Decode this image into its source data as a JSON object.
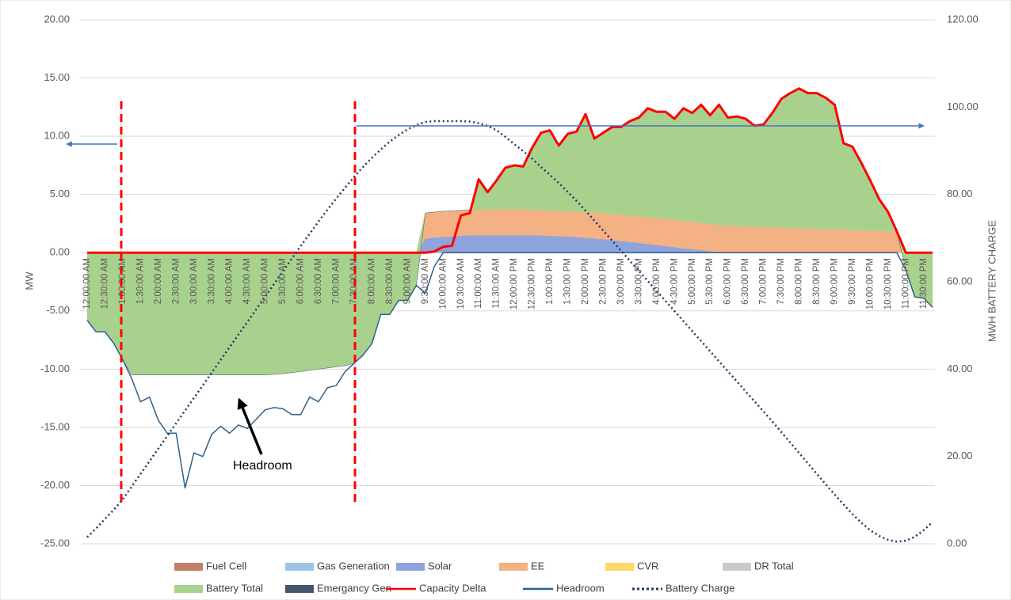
{
  "chart_data": {
    "type": "area",
    "ylabel": "MW",
    "y2label": "MWH BATTERY CHARGE",
    "ylim": [
      -25,
      20
    ],
    "yticks": [
      {
        "value": -25,
        "label": "-25.00"
      },
      {
        "value": -20,
        "label": "-20.00"
      },
      {
        "value": -15,
        "label": "-15.00"
      },
      {
        "value": -10,
        "label": "-10.00"
      },
      {
        "value": -5,
        "label": "-5.00"
      },
      {
        "value": 0,
        "label": "0.00"
      },
      {
        "value": 5,
        "label": "5.00"
      },
      {
        "value": 10,
        "label": "10.00"
      },
      {
        "value": 15,
        "label": "15.00"
      },
      {
        "value": 20,
        "label": "20.00"
      }
    ],
    "y2lim": [
      0,
      120
    ],
    "y2ticks": [
      {
        "value": 0,
        "label": "0.00"
      },
      {
        "value": 20,
        "label": "20.00"
      },
      {
        "value": 40,
        "label": "40.00"
      },
      {
        "value": 60,
        "label": "60.00"
      },
      {
        "value": 80,
        "label": "80.00"
      },
      {
        "value": 100,
        "label": "100.00"
      },
      {
        "value": 120,
        "label": "120.00"
      }
    ],
    "grid": true,
    "legend": "bottom",
    "annotations": [
      {
        "text": "Headroom"
      }
    ],
    "categories": [
      "12:00:00 AM",
      null,
      "12:30:00 AM",
      null,
      "1:00:00 AM",
      null,
      "1:30:00 AM",
      null,
      "2:00:00 AM",
      null,
      "2:30:00 AM",
      null,
      "3:00:00 AM",
      null,
      "3:30:00 AM",
      null,
      "4:00:00 AM",
      null,
      "4:30:00 AM",
      null,
      "5:00:00 AM",
      null,
      "5:30:00 AM",
      null,
      "6:00:00 AM",
      null,
      "6:30:00 AM",
      null,
      "7:00:00 AM",
      null,
      "7:30:00 AM",
      null,
      "8:00:00 AM",
      null,
      "8:30:00 AM",
      null,
      "9:00:00 AM",
      null,
      "9:30:00 AM",
      null,
      "10:00:00 AM",
      null,
      "10:30:00 AM",
      null,
      "11:00:00 AM",
      null,
      "11:30:00 AM",
      null,
      "12:00:00 PM",
      null,
      "12:30:00 PM",
      null,
      "1:00:00 PM",
      null,
      "1:30:00 PM",
      null,
      "2:00:00 PM",
      null,
      "2:30:00 PM",
      null,
      "3:00:00 PM",
      null,
      "3:30:00 PM",
      null,
      "4:00:00 PM",
      null,
      "4:30:00 PM",
      null,
      "5:00:00 PM",
      null,
      "5:30:00 PM",
      null,
      "6:00:00 PM",
      null,
      "6:30:00 PM",
      null,
      "7:00:00 PM",
      null,
      "7:30:00 PM",
      null,
      "8:00:00 PM",
      null,
      "8:30:00 PM",
      null,
      "9:00:00 PM",
      null,
      "9:30:00 PM",
      null,
      "10:00:00 PM",
      null,
      "10:30:00 PM",
      null,
      "11:00:00 PM",
      null,
      "11:30:00 PM",
      null
    ],
    "series": [
      {
        "name": "Fuel Cell",
        "type": "area",
        "color": "#c0806a",
        "values": [
          0,
          0,
          0,
          0,
          0,
          0,
          0,
          0,
          0,
          0,
          0,
          0,
          0,
          0,
          0,
          0,
          0,
          0,
          0,
          0,
          0,
          0,
          0,
          0,
          0,
          0,
          0,
          0,
          0,
          0,
          0,
          0,
          0,
          0,
          0,
          0,
          0,
          0,
          0,
          0,
          0,
          0,
          0,
          0,
          0,
          0,
          0,
          0,
          0,
          0,
          0,
          0,
          0,
          0,
          0,
          0,
          0,
          0,
          0,
          0,
          0,
          0,
          0,
          0,
          0,
          0,
          0,
          0,
          0,
          0,
          0,
          0,
          0,
          0,
          0,
          0,
          0,
          0,
          0,
          0,
          0,
          0,
          0,
          0,
          0,
          0,
          0,
          0,
          0,
          0,
          0,
          0,
          0,
          0,
          0,
          0
        ]
      },
      {
        "name": "Gas Generation",
        "type": "area",
        "color": "#9dc3e6",
        "values": [
          0,
          0,
          0,
          0,
          0,
          0,
          0,
          0,
          0,
          0,
          0,
          0,
          0,
          0,
          0,
          0,
          0,
          0,
          0,
          0,
          0,
          0,
          0,
          0,
          0,
          0,
          0,
          0,
          0,
          0,
          0,
          0,
          0,
          0,
          0,
          0,
          0,
          0,
          0,
          0,
          0,
          0,
          0,
          0,
          0,
          0,
          0,
          0,
          0,
          0,
          0,
          0,
          0,
          0,
          0,
          0,
          0,
          0,
          0,
          0,
          0,
          0,
          0,
          0,
          0,
          0,
          0,
          0,
          0,
          0,
          0,
          0,
          0,
          0,
          0,
          0,
          0,
          0,
          0,
          0,
          0,
          0,
          0,
          0,
          0,
          0,
          0,
          0,
          0,
          0,
          0,
          0,
          0,
          0,
          0,
          0
        ]
      },
      {
        "name": "Solar",
        "type": "area",
        "color": "#8fa4dc",
        "values": [
          0,
          0,
          0,
          0,
          0,
          0,
          0,
          0,
          0,
          0,
          0,
          0,
          0,
          0,
          0,
          0,
          0,
          0,
          0,
          0,
          0,
          0,
          0,
          0,
          0,
          0,
          0,
          0,
          0,
          0,
          0,
          0,
          0,
          0,
          0,
          0,
          0,
          0,
          1.2,
          1.3,
          1.35,
          1.4,
          1.45,
          1.5,
          1.5,
          1.5,
          1.5,
          1.5,
          1.5,
          1.5,
          1.5,
          1.48,
          1.45,
          1.42,
          1.38,
          1.33,
          1.28,
          1.22,
          1.15,
          1.08,
          1.0,
          0.92,
          0.84,
          0.75,
          0.66,
          0.57,
          0.48,
          0.39,
          0.3,
          0.21,
          0.13,
          0.06,
          0,
          0,
          0,
          0,
          0,
          0,
          0,
          0,
          0,
          0,
          0,
          0,
          0,
          0,
          0,
          0,
          0,
          0,
          0,
          0,
          0,
          0,
          0,
          0
        ]
      },
      {
        "name": "EE",
        "type": "area",
        "color": "#f4b183",
        "values": [
          0,
          0,
          0,
          0,
          0,
          0,
          0,
          0,
          0,
          0,
          0,
          0,
          0,
          0,
          0,
          0,
          0,
          0,
          0,
          0,
          0,
          0,
          0,
          0,
          0,
          0,
          0,
          0,
          0,
          0,
          0,
          0,
          0,
          0,
          0,
          0,
          0,
          0,
          2.2,
          2.18,
          2.2,
          2.19,
          2.18,
          2.16,
          2.2,
          2.21,
          2.22,
          2.24,
          2.25,
          2.22,
          2.19,
          2.18,
          2.18,
          2.17,
          2.18,
          2.2,
          2.22,
          2.22,
          2.23,
          2.23,
          2.25,
          2.27,
          2.29,
          2.31,
          2.34,
          2.34,
          2.35,
          2.35,
          2.35,
          2.35,
          2.35,
          2.33,
          2.3,
          2.28,
          2.25,
          2.23,
          2.2,
          2.18,
          2.15,
          2.13,
          2.1,
          2.08,
          2.05,
          2.03,
          2.0,
          1.98,
          1.95,
          1.93,
          1.9,
          1.87,
          1.83,
          1.8,
          0,
          0,
          0,
          0
        ]
      },
      {
        "name": "CVR",
        "type": "area",
        "color": "#ffd966",
        "values": [
          0,
          0,
          0,
          0,
          0,
          0,
          0,
          0,
          0,
          0,
          0,
          0,
          0,
          0,
          0,
          0,
          0,
          0,
          0,
          0,
          0,
          0,
          0,
          0,
          0,
          0,
          0,
          0,
          0,
          0,
          0,
          0,
          0,
          0,
          0,
          0,
          0,
          0,
          0,
          0,
          0,
          0,
          0,
          0,
          0,
          0,
          0,
          0,
          0,
          0,
          0,
          0,
          0,
          0,
          0,
          0,
          0,
          0,
          0,
          0,
          0,
          0,
          0,
          0,
          0,
          0,
          0,
          0,
          0,
          0,
          0,
          0,
          0,
          0,
          0,
          0,
          0,
          0,
          0,
          0,
          0,
          0,
          0,
          0,
          0,
          0,
          0,
          0,
          0,
          0,
          0,
          0,
          0,
          0,
          0,
          0
        ]
      },
      {
        "name": "DR Total",
        "type": "area",
        "color": "#c9c9c9",
        "values": [
          0,
          0,
          0,
          0,
          0,
          0,
          0,
          0,
          0,
          0,
          0,
          0,
          0,
          0,
          0,
          0,
          0,
          0,
          0,
          0,
          0,
          0,
          0,
          0,
          0,
          0,
          0,
          0,
          0,
          0,
          0,
          0,
          0,
          0,
          0,
          0,
          0,
          0,
          0,
          0,
          0,
          0,
          0,
          0,
          0,
          0,
          0,
          0,
          0,
          0,
          0,
          0,
          0,
          0,
          0,
          0,
          0,
          0,
          0,
          0,
          0,
          0,
          0,
          0,
          0,
          0,
          0,
          0,
          0,
          0,
          0,
          0,
          0,
          0,
          0,
          0,
          0,
          0,
          0,
          0,
          0,
          0,
          0,
          0,
          0,
          0,
          0,
          0,
          0,
          0,
          0,
          0,
          0,
          0,
          0,
          0
        ]
      },
      {
        "name": "Battery Total",
        "type": "area",
        "color": "#a9d18e",
        "values": [
          -5.8,
          -6.8,
          -6.8,
          -7.8,
          -9.2,
          -10.5,
          -10.5,
          -10.5,
          -10.5,
          -10.5,
          -10.5,
          -10.5,
          -10.5,
          -10.5,
          -10.5,
          -10.5,
          -10.5,
          -10.5,
          -10.5,
          -10.5,
          -10.5,
          -10.45,
          -10.4,
          -10.3,
          -10.2,
          -10.1,
          -10.0,
          -9.9,
          -9.8,
          -9.7,
          -9.5,
          -8.8,
          -7.8,
          -5.3,
          -5.3,
          -4.1,
          -4.1,
          -2.8,
          0,
          0,
          0,
          0,
          0,
          0,
          2.6,
          1.49,
          2.48,
          3.56,
          3.75,
          3.68,
          5.31,
          6.64,
          6.87,
          5.61,
          6.64,
          6.87,
          8.4,
          6.36,
          6.92,
          7.49,
          7.55,
          8.11,
          8.47,
          9.34,
          9.1,
          9.19,
          8.67,
          9.66,
          9.35,
          10.14,
          9.32,
          10.31,
          9.3,
          9.42,
          9.25,
          8.67,
          8.8,
          9.82,
          11.05,
          11.57,
          12.0,
          11.62,
          11.65,
          11.27,
          10.7,
          7.42,
          7.15,
          5.77,
          4.3,
          2.73,
          1.67,
          0,
          -1.5,
          -3.8,
          -3.9,
          -4.7
        ]
      },
      {
        "name": "Emergancy Gen",
        "type": "area",
        "color": "#44546a",
        "values": [
          0,
          0,
          0,
          0,
          0,
          0,
          0,
          0,
          0,
          0,
          0,
          0,
          0,
          0,
          0,
          0,
          0,
          0,
          0,
          0,
          0,
          0,
          0,
          0,
          0,
          0,
          0,
          0,
          0,
          0,
          0,
          0,
          0,
          0,
          0,
          0,
          0,
          0,
          0,
          0,
          0,
          0,
          0,
          0,
          0,
          0,
          0,
          0,
          0,
          0,
          0,
          0,
          0,
          0,
          0,
          0,
          0,
          0,
          0,
          0,
          0,
          0,
          0,
          0,
          0,
          0,
          0,
          0,
          0,
          0,
          0,
          0,
          0,
          0,
          0,
          0,
          0,
          0,
          0,
          0,
          0,
          0,
          0,
          0,
          0,
          0,
          0,
          0,
          0,
          0,
          0,
          0,
          0,
          0,
          0,
          0
        ]
      },
      {
        "name": "Capacity Delta",
        "type": "line",
        "color": "#ff0000",
        "values": [
          0,
          0,
          0,
          0,
          0,
          0,
          0,
          0,
          0,
          0,
          0,
          0,
          0,
          0,
          0,
          0,
          0,
          0,
          0,
          0,
          0,
          0,
          0,
          0,
          0,
          0,
          0,
          0,
          0,
          0,
          0,
          0,
          0,
          0,
          0,
          0,
          0,
          0,
          0,
          0.1,
          0.5,
          0.6,
          3.2,
          3.4,
          6.3,
          5.2,
          6.2,
          7.3,
          7.5,
          7.4,
          9.0,
          10.3,
          10.5,
          9.2,
          10.2,
          10.4,
          11.9,
          9.8,
          10.3,
          10.8,
          10.8,
          11.3,
          11.6,
          12.4,
          12.1,
          12.1,
          11.5,
          12.4,
          12.0,
          12.7,
          11.8,
          12.7,
          11.6,
          11.7,
          11.5,
          10.9,
          11.0,
          12.0,
          13.2,
          13.7,
          14.1,
          13.7,
          13.7,
          13.3,
          12.7,
          9.4,
          9.1,
          7.7,
          6.2,
          4.6,
          3.5,
          1.8,
          0,
          0,
          0,
          0
        ]
      },
      {
        "name": "Headroom",
        "type": "line",
        "color": "#2f5f8a",
        "values": [
          -5.8,
          -6.8,
          -6.8,
          -7.8,
          -9.2,
          -10.8,
          -12.8,
          -12.4,
          -14.4,
          -15.5,
          -15.5,
          -20.2,
          -17.2,
          -17.5,
          -15.6,
          -14.9,
          -15.5,
          -14.8,
          -15.1,
          -14.3,
          -13.5,
          -13.3,
          -13.4,
          -13.9,
          -13.9,
          -12.4,
          -12.8,
          -11.6,
          -11.4,
          -10.2,
          -9.5,
          -8.8,
          -7.8,
          -5.3,
          -5.3,
          -4.1,
          -4.1,
          -2.8,
          -3.5,
          -1.2,
          0,
          0,
          0,
          0,
          0,
          0,
          0,
          0,
          0,
          0,
          0,
          0,
          0,
          0,
          0,
          0,
          0,
          0,
          0,
          0,
          0,
          0,
          0,
          0,
          0,
          0,
          0,
          0,
          0,
          0,
          0,
          0,
          0,
          0,
          0,
          0,
          0,
          0,
          0,
          0,
          0,
          0,
          0,
          0,
          0,
          0,
          0,
          0,
          0,
          0,
          0,
          0,
          -1.5,
          -3.8,
          -3.9,
          -4.7
        ]
      },
      {
        "name": "Battery Charge",
        "type": "line",
        "style": "dotted",
        "axis": "y2",
        "color": "#1f3864",
        "values": [
          1.5,
          3.5,
          5.7,
          7.8,
          10.2,
          13.1,
          16.0,
          18.9,
          21.8,
          24.7,
          27.6,
          30.5,
          33.4,
          36.3,
          39.2,
          42.1,
          45.0,
          47.9,
          50.8,
          53.7,
          56.6,
          59.5,
          62.4,
          65.3,
          68.2,
          71.0,
          73.8,
          76.5,
          79.1,
          81.6,
          84.0,
          86.3,
          88.4,
          90.3,
          92.1,
          93.6,
          94.9,
          95.9,
          96.6,
          96.8,
          96.8,
          96.8,
          96.8,
          96.7,
          96.3,
          95.7,
          94.7,
          93.2,
          91.5,
          89.9,
          88.2,
          86.3,
          84.5,
          82.6,
          80.6,
          78.5,
          76.3,
          74.0,
          71.7,
          69.4,
          67.1,
          64.8,
          62.5,
          60.2,
          57.9,
          55.6,
          53.3,
          51.0,
          48.7,
          46.4,
          44.1,
          41.8,
          39.5,
          37.2,
          34.9,
          32.6,
          30.3,
          28.0,
          25.6,
          23.2,
          20.8,
          18.4,
          16.0,
          13.6,
          11.3,
          9.0,
          6.8,
          4.8,
          3.1,
          1.8,
          0.9,
          0.5,
          0.7,
          1.6,
          3.1,
          5.0
        ]
      }
    ]
  }
}
